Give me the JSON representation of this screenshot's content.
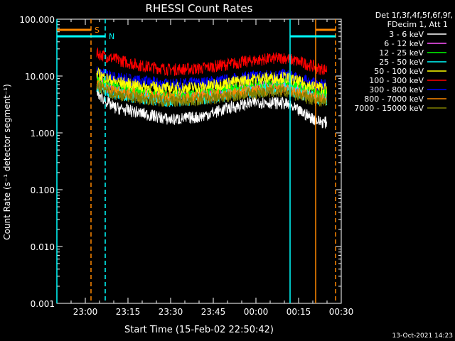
{
  "chart_data": {
    "type": "line",
    "title": "RHESSI Count Rates",
    "xlabel": "Start Time (15-Feb-02 22:50:42)",
    "ylabel": "Count Rate (s⁻¹ detector segment⁻¹)",
    "yscale": "log",
    "ylim": [
      0.001,
      100
    ],
    "xlim": [
      "22:50",
      "00:30"
    ],
    "x_tick_labels": [
      "23:00",
      "23:15",
      "23:30",
      "23:45",
      "00:00",
      "00:15",
      "00:30"
    ],
    "y_tick_labels": [
      "0.001",
      "0.010",
      "0.100",
      "1.000",
      "10.000",
      "100.000"
    ],
    "legend_position": "top-right (outside plot)",
    "legend_header": [
      "Det 1f,3f,4f,5f,6f,9f,",
      "FDecim 1, Att 1"
    ],
    "x_minutes_since_2250": [
      14,
      20,
      30,
      40,
      50,
      60,
      70,
      80,
      90,
      92,
      95
    ],
    "series": [
      {
        "name": "3 - 6 keV",
        "color": "#ffffff",
        "values": [
          5.0,
          2.8,
          2.2,
          1.7,
          1.9,
          2.7,
          3.5,
          3.3,
          1.8,
          1.6,
          1.5
        ]
      },
      {
        "name": "6 - 12 keV",
        "color": "#ff55ff",
        "values": [
          7.5,
          6.0,
          4.8,
          4.2,
          4.5,
          5.3,
          6.5,
          7.2,
          5.0,
          4.7,
          4.5
        ]
      },
      {
        "name": "12 - 25 keV",
        "color": "#00ff00",
        "values": [
          8.5,
          6.5,
          5.2,
          4.5,
          4.8,
          5.7,
          7.0,
          7.5,
          5.4,
          5.0,
          4.8
        ]
      },
      {
        "name": "25 - 50 keV",
        "color": "#00ffff",
        "values": [
          6.5,
          5.0,
          4.0,
          3.6,
          3.9,
          4.5,
          5.5,
          6.0,
          4.3,
          4.0,
          3.8
        ]
      },
      {
        "name": "50 - 100 keV",
        "color": "#ffff00",
        "values": [
          11.0,
          8.0,
          6.5,
          6.0,
          6.3,
          7.5,
          9.0,
          9.5,
          6.5,
          6.3,
          6.0
        ]
      },
      {
        "name": "100 - 300 keV",
        "color": "#ff0000",
        "values": [
          25.0,
          20.0,
          15.0,
          13.0,
          13.5,
          16.0,
          19.0,
          21.0,
          15.0,
          13.5,
          13.0
        ]
      },
      {
        "name": "300 - 800 keV",
        "color": "#0000ff",
        "values": [
          12.0,
          9.5,
          8.0,
          7.0,
          7.5,
          8.5,
          10.0,
          10.5,
          7.5,
          7.0,
          6.8
        ]
      },
      {
        "name": "800 - 7000 keV",
        "color": "#ff8800",
        "values": [
          7.0,
          5.5,
          4.5,
          4.0,
          4.3,
          4.8,
          5.5,
          5.8,
          4.2,
          4.0,
          3.8
        ]
      },
      {
        "name": "7000 - 15000 keV",
        "color": "#808000",
        "values": [
          6.5,
          4.8,
          4.0,
          3.6,
          3.8,
          4.3,
          5.0,
          5.3,
          3.9,
          3.7,
          3.5
        ]
      }
    ],
    "state_bars": [
      {
        "label": "S",
        "color": "#ff8800",
        "value": 65,
        "intervals": [
          [
            "22:50",
            "23:02"
          ],
          [
            "00:21",
            "00:28"
          ]
        ]
      },
      {
        "label": "N",
        "color": "#00ffff",
        "value": 50,
        "intervals": [
          [
            "22:50",
            "23:07"
          ],
          [
            "00:12",
            "00:28"
          ]
        ]
      }
    ],
    "markers": [
      {
        "color": "#ff8800",
        "style": "dashed",
        "at": "23:02"
      },
      {
        "color": "#00ffff",
        "style": "dashed",
        "at": "23:07"
      },
      {
        "color": "#00ffff",
        "style": "solid",
        "at": "22:50"
      },
      {
        "color": "#00ffff",
        "style": "solid",
        "at": "00:12"
      },
      {
        "color": "#ff8800",
        "style": "solid",
        "at": "00:21"
      },
      {
        "color": "#ff8800",
        "style": "dashed",
        "at": "00:28"
      }
    ]
  },
  "timestamp": "13-Oct-2021 14:23"
}
